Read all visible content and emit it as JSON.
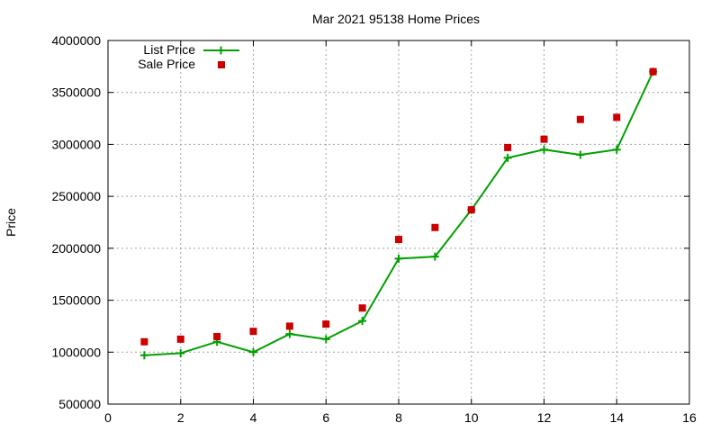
{
  "chart_data": {
    "type": "line",
    "title": "Mar 2021 95138 Home Prices",
    "xlabel": "",
    "ylabel": "Price",
    "xlim": [
      0,
      16
    ],
    "ylim": [
      500000,
      4000000
    ],
    "x_ticks": [
      0,
      2,
      4,
      6,
      8,
      10,
      12,
      14,
      16
    ],
    "y_ticks": [
      500000,
      1000000,
      1500000,
      2000000,
      2500000,
      3000000,
      3500000,
      4000000
    ],
    "grid": true,
    "legend_position": "top-left",
    "x": [
      1,
      2,
      3,
      4,
      5,
      6,
      7,
      8,
      9,
      10,
      11,
      12,
      13,
      14,
      15
    ],
    "series": [
      {
        "name": "List Price",
        "style": "linespoints",
        "color": "#00a000",
        "values": [
          970000,
          990000,
          1100000,
          1000000,
          1175000,
          1125000,
          1300000,
          1900000,
          1920000,
          2370000,
          2870000,
          2950000,
          2900000,
          2950000,
          3700000
        ]
      },
      {
        "name": "Sale Price",
        "style": "points",
        "color": "#cc0000",
        "values": [
          1100000,
          1125000,
          1150000,
          1200000,
          1250000,
          1270000,
          1425000,
          2085000,
          2200000,
          2370000,
          2970000,
          3050000,
          3240000,
          3260000,
          3700000
        ]
      }
    ]
  }
}
